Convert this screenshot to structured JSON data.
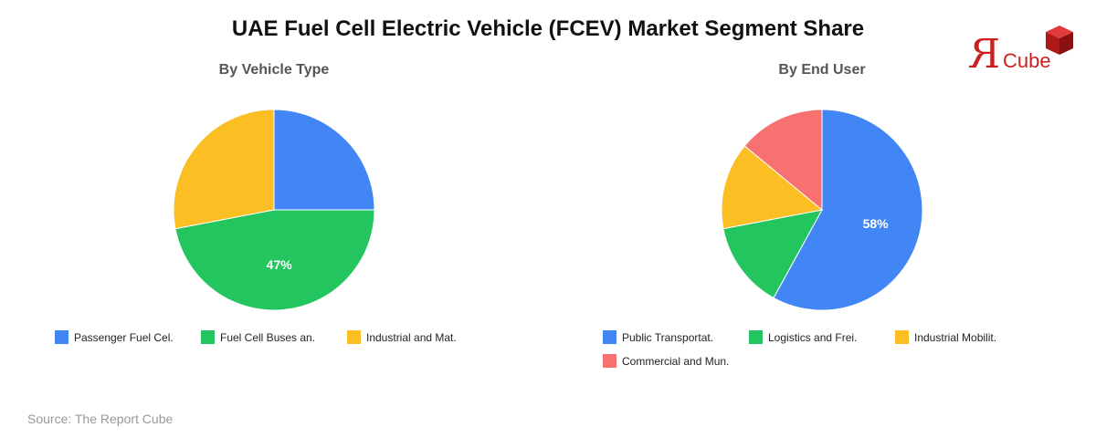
{
  "title": "UAE Fuel Cell Electric Vehicle (FCEV) Market Segment Share",
  "source": "Source: The Report Cube",
  "logo": {
    "letter": "R",
    "text": "Cube"
  },
  "chart_data": [
    {
      "type": "pie",
      "title": "By Vehicle Type",
      "labels": [
        "Passenger Fuel Cel.",
        "Fuel Cell Buses an.",
        "Industrial and Mat."
      ],
      "values": [
        25,
        47,
        28
      ],
      "colors": [
        "#4285f4",
        "#22c55e",
        "#fbbf24"
      ],
      "data_labels": [
        "",
        "47%",
        ""
      ],
      "start_angle": "top, clockwise",
      "legend": "bottom"
    },
    {
      "type": "pie",
      "title": "By End User",
      "labels": [
        "Public Transportat.",
        "Logistics and Frei.",
        "Industrial Mobilit.",
        "Commercial and Mun."
      ],
      "values": [
        58,
        14,
        14,
        14
      ],
      "colors": [
        "#4285f4",
        "#22c55e",
        "#fbbf24",
        "#f87171"
      ],
      "data_labels": [
        "58%",
        "",
        "",
        ""
      ],
      "start_angle": "top, clockwise",
      "legend": "bottom"
    }
  ]
}
